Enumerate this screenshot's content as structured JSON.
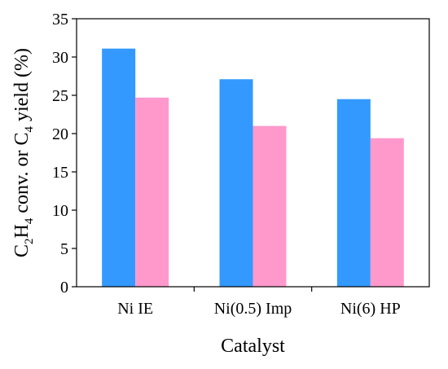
{
  "chart_data": {
    "type": "bar",
    "categories": [
      "Ni IE",
      "Ni(0.5) Imp",
      "Ni(6) HP"
    ],
    "series": [
      {
        "values": [
          31.1,
          27.1,
          24.5
        ],
        "color": "#3399ff"
      },
      {
        "values": [
          24.7,
          21.0,
          19.4
        ],
        "color": "#ff99cc"
      }
    ],
    "xlabel": "Catalyst",
    "ylabel": {
      "parts": [
        {
          "t": "C"
        },
        {
          "t": "2",
          "sub": true
        },
        {
          "t": "H"
        },
        {
          "t": "4",
          "sub": true
        },
        {
          "t": " conv. or C"
        },
        {
          "t": "4",
          "sub": true
        },
        {
          "t": " yield (%)"
        }
      ]
    },
    "ylim": [
      0,
      35
    ],
    "yticks": [
      0,
      5,
      10,
      15,
      20,
      25,
      30,
      35
    ],
    "grid": false,
    "legend": "none"
  }
}
